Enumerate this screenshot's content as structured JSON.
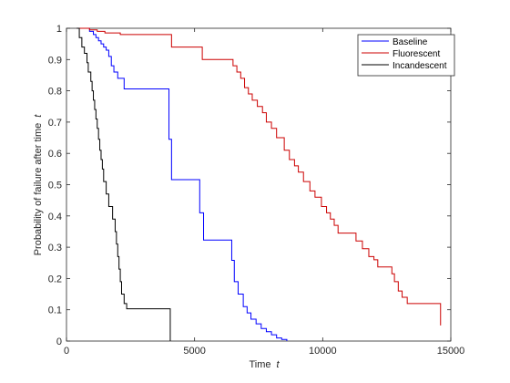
{
  "chart_data": {
    "type": "line",
    "step": true,
    "title": "",
    "xlabel": "Time",
    "xlabel_var": "t",
    "ylabel": "Probability of failure after time",
    "ylabel_var": "t",
    "xlim": [
      0,
      15000
    ],
    "ylim": [
      0,
      1
    ],
    "xticks": [
      0,
      5000,
      10000,
      15000
    ],
    "xtick_labels": [
      "0",
      "5000",
      "10000",
      "15000"
    ],
    "yticks": [
      0,
      0.1,
      0.2,
      0.3,
      0.4,
      0.5,
      0.6,
      0.7,
      0.8,
      0.9,
      1
    ],
    "ytick_labels": [
      "0",
      "0.1",
      "0.2",
      "0.3",
      "0.4",
      "0.5",
      "0.6",
      "0.7",
      "0.8",
      "0.9",
      "1"
    ],
    "grid": false,
    "legend": "top-right",
    "series": [
      {
        "name": "Baseline",
        "color": "#0000ff",
        "points": [
          [
            400,
            1.0
          ],
          [
            900,
            0.99
          ],
          [
            1050,
            0.98
          ],
          [
            1150,
            0.97
          ],
          [
            1250,
            0.96
          ],
          [
            1350,
            0.95
          ],
          [
            1450,
            0.94
          ],
          [
            1550,
            0.93
          ],
          [
            1650,
            0.91
          ],
          [
            1750,
            0.88
          ],
          [
            1850,
            0.86
          ],
          [
            2000,
            0.84
          ],
          [
            2250,
            0.806
          ],
          [
            4000,
            0.645
          ],
          [
            4100,
            0.516
          ],
          [
            5200,
            0.41
          ],
          [
            5350,
            0.323
          ],
          [
            6450,
            0.258
          ],
          [
            6550,
            0.19
          ],
          [
            6700,
            0.15
          ],
          [
            6900,
            0.11
          ],
          [
            7050,
            0.09
          ],
          [
            7200,
            0.07
          ],
          [
            7400,
            0.055
          ],
          [
            7600,
            0.04
          ],
          [
            7800,
            0.03
          ],
          [
            8000,
            0.02
          ],
          [
            8200,
            0.01
          ],
          [
            8400,
            0.005
          ],
          [
            8600,
            0.0
          ]
        ],
        "end_x": 8600
      },
      {
        "name": "Fluorescent",
        "color": "#cc0000",
        "points": [
          [
            400,
            1.0
          ],
          [
            900,
            0.995
          ],
          [
            1200,
            0.99
          ],
          [
            1500,
            0.985
          ],
          [
            2100,
            0.98
          ],
          [
            4100,
            0.94
          ],
          [
            5300,
            0.9
          ],
          [
            6500,
            0.88
          ],
          [
            6650,
            0.86
          ],
          [
            6800,
            0.84
          ],
          [
            6950,
            0.81
          ],
          [
            7100,
            0.79
          ],
          [
            7250,
            0.77
          ],
          [
            7450,
            0.75
          ],
          [
            7650,
            0.73
          ],
          [
            7800,
            0.7
          ],
          [
            8000,
            0.68
          ],
          [
            8200,
            0.65
          ],
          [
            8500,
            0.61
          ],
          [
            8700,
            0.58
          ],
          [
            8900,
            0.56
          ],
          [
            9050,
            0.54
          ],
          [
            9250,
            0.51
          ],
          [
            9500,
            0.48
          ],
          [
            9700,
            0.46
          ],
          [
            9950,
            0.43
          ],
          [
            10150,
            0.41
          ],
          [
            10300,
            0.39
          ],
          [
            10450,
            0.37
          ],
          [
            10600,
            0.345
          ],
          [
            11300,
            0.32
          ],
          [
            11550,
            0.295
          ],
          [
            11800,
            0.27
          ],
          [
            12000,
            0.26
          ],
          [
            12150,
            0.237
          ],
          [
            12700,
            0.215
          ],
          [
            12800,
            0.19
          ],
          [
            12950,
            0.16
          ],
          [
            13100,
            0.14
          ],
          [
            13300,
            0.12
          ]
        ],
        "end_x": 14600,
        "end_y": 0.05
      },
      {
        "name": "Incandescent",
        "color": "#000000",
        "points": [
          [
            400,
            1.0
          ],
          [
            500,
            0.97
          ],
          [
            600,
            0.94
          ],
          [
            700,
            0.92
          ],
          [
            800,
            0.89
          ],
          [
            850,
            0.86
          ],
          [
            950,
            0.83
          ],
          [
            1000,
            0.8
          ],
          [
            1050,
            0.77
          ],
          [
            1100,
            0.74
          ],
          [
            1150,
            0.71
          ],
          [
            1200,
            0.68
          ],
          [
            1250,
            0.645
          ],
          [
            1300,
            0.61
          ],
          [
            1350,
            0.58
          ],
          [
            1400,
            0.55
          ],
          [
            1450,
            0.51
          ],
          [
            1550,
            0.47
          ],
          [
            1650,
            0.43
          ],
          [
            1800,
            0.39
          ],
          [
            1900,
            0.35
          ],
          [
            1950,
            0.31
          ],
          [
            2000,
            0.27
          ],
          [
            2050,
            0.23
          ],
          [
            2100,
            0.19
          ],
          [
            2150,
            0.15
          ],
          [
            2250,
            0.12
          ],
          [
            2350,
            0.103
          ],
          [
            4050,
            0.0
          ]
        ],
        "end_x": 4050
      }
    ]
  }
}
